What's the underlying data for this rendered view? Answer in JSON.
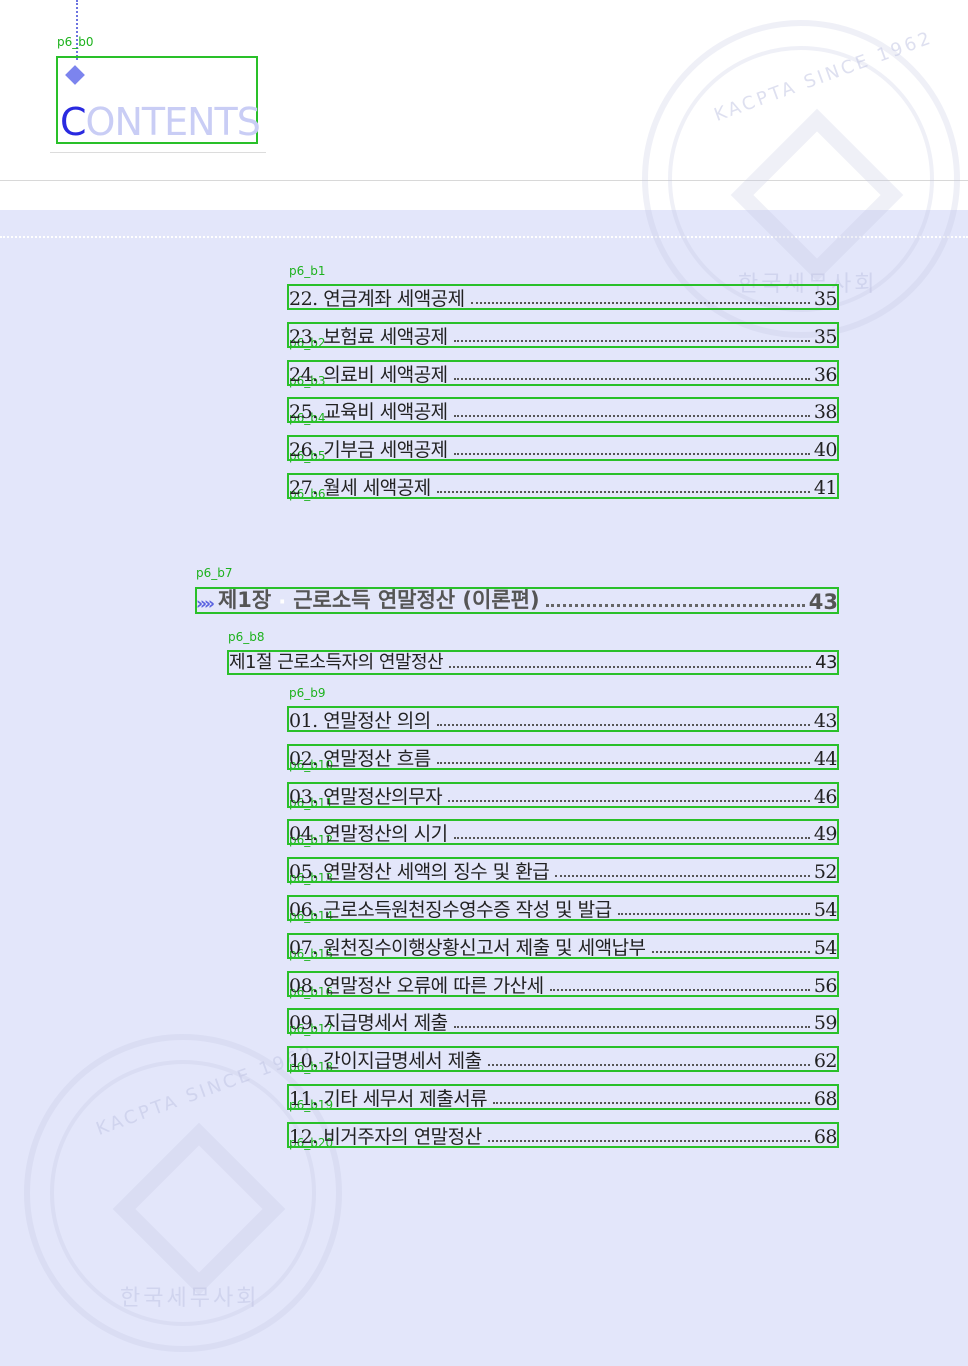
{
  "header": {
    "title_first": "C",
    "title_rest": "ONTENTS",
    "label": "p6_b0"
  },
  "watermark": {
    "ring_text": "KACPTA SINCE 1962",
    "org": "한국세무사회"
  },
  "top_items": [
    {
      "label": "p6_b1",
      "num": "22.",
      "text": "연금계좌 세액공제",
      "page": "35"
    },
    {
      "label": "p6_b2",
      "num": "23.",
      "text": "보험료 세액공제",
      "page": "35"
    },
    {
      "label": "p6_b3",
      "num": "24.",
      "text": "의료비 세액공제",
      "page": "36"
    },
    {
      "label": "p6_b4",
      "num": "25.",
      "text": "교육비 세액공제",
      "page": "38"
    },
    {
      "label": "p6_b5",
      "num": "26.",
      "text": "기부금 세액공제",
      "page": "40"
    },
    {
      "label": "p6_b6",
      "num": "27.",
      "text": "월세 세액공제",
      "page": "41"
    }
  ],
  "chapter": {
    "label": "p6_b7",
    "arrows": "»»",
    "num": "제1장",
    "title": "근로소득 연말정산 (이론편)",
    "page": "43"
  },
  "section": {
    "label": "p6_b8",
    "text": "제1절 근로소득자의 연말정산",
    "page": "43"
  },
  "items": [
    {
      "label": "p6_b9",
      "num": "01.",
      "text": "연말정산 의의",
      "page": "43"
    },
    {
      "label": "p6_b10",
      "num": "02.",
      "text": "연말정산 흐름",
      "page": "44"
    },
    {
      "label": "p6_b11",
      "num": "03.",
      "text": "연말정산의무자",
      "page": "46"
    },
    {
      "label": "p6_b12",
      "num": "04.",
      "text": "연말정산의 시기",
      "page": "49"
    },
    {
      "label": "p6_b13",
      "num": "05.",
      "text": "연말정산 세액의 징수 및 환급",
      "page": "52"
    },
    {
      "label": "p6_b14",
      "num": "06.",
      "text": "근로소득원천징수영수증 작성 및 발급",
      "page": "54"
    },
    {
      "label": "p6_b15",
      "num": "07.",
      "text": "원천징수이행상황신고서 제출 및 세액납부",
      "page": "54"
    },
    {
      "label": "p6_b16",
      "num": "08.",
      "text": "연말정산 오류에 따른 가산세",
      "page": "56"
    },
    {
      "label": "p6_b17",
      "num": "09.",
      "text": "지급명세서 제출",
      "page": "59"
    },
    {
      "label": "p6_b18",
      "num": "10.",
      "text": "간이지급명세서 제출",
      "page": "62"
    },
    {
      "label": "p6_b19",
      "num": "11.",
      "text": "기타 세무서 제출서류",
      "page": "68"
    },
    {
      "label": "p6_b20",
      "num": "12.",
      "text": "비거주자의 연말정산",
      "page": "68"
    }
  ]
}
